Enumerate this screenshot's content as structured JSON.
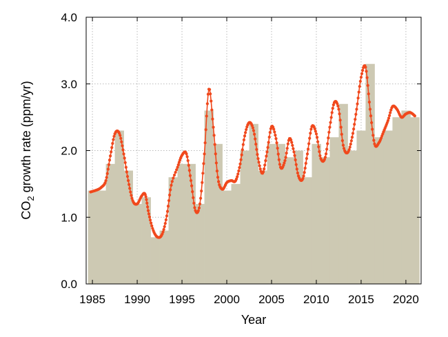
{
  "chart_data": {
    "type": "bar",
    "title": "",
    "xlabel": "Year",
    "ylabel": "CO₂ growth rate (ppm/yr)",
    "xlim": [
      1984.3,
      2021.7
    ],
    "ylim": [
      0.0,
      4.0
    ],
    "x_ticks": [
      1985,
      1990,
      1995,
      2000,
      2005,
      2010,
      2015,
      2020
    ],
    "x_tick_labels": [
      "1985",
      "1990",
      "1995",
      "2000",
      "2005",
      "2010",
      "2015",
      "2020"
    ],
    "y_ticks": [
      0.0,
      1.0,
      2.0,
      3.0,
      4.0
    ],
    "y_tick_labels": [
      "0.0",
      "1.0",
      "2.0",
      "3.0",
      "4.0"
    ],
    "grid": true,
    "legend": "none",
    "series": [
      {
        "type": "bar",
        "color": "#cdc9b3",
        "categories": [
          1985,
          1986,
          1987,
          1988,
          1989,
          1990,
          1991,
          1992,
          1993,
          1994,
          1995,
          1996,
          1997,
          1998,
          1999,
          2000,
          2001,
          2002,
          2003,
          2004,
          2005,
          2006,
          2007,
          2008,
          2009,
          2010,
          2011,
          2012,
          2013,
          2014,
          2015,
          2016,
          2017,
          2018,
          2019,
          2020,
          2021
        ],
        "values": [
          1.4,
          1.4,
          1.8,
          2.3,
          1.7,
          1.2,
          1.3,
          0.7,
          0.8,
          1.6,
          1.8,
          1.8,
          1.2,
          2.6,
          2.1,
          1.4,
          1.5,
          2.0,
          2.4,
          1.7,
          2.1,
          2.1,
          1.9,
          2.0,
          1.6,
          2.1,
          1.9,
          2.2,
          2.7,
          2.0,
          2.3,
          3.3,
          2.2,
          2.3,
          2.5,
          2.6,
          2.5
        ]
      },
      {
        "type": "line",
        "color": "#f0481c",
        "x": [
          1984.8,
          1985.5,
          1986.0,
          1986.5,
          1987.0,
          1987.5,
          1988.0,
          1988.5,
          1989.0,
          1989.5,
          1990.0,
          1990.5,
          1990.9,
          1991.3,
          1991.8,
          1992.3,
          1992.8,
          1993.3,
          1993.8,
          1994.5,
          1995.0,
          1995.5,
          1996.0,
          1996.5,
          1997.0,
          1997.5,
          1998.0,
          1998.5,
          1999.0,
          1999.5,
          2000.0,
          2000.5,
          2001.0,
          2001.5,
          2002.0,
          2002.5,
          2003.0,
          2003.5,
          2004.0,
          2004.5,
          2005.0,
          2005.5,
          2006.0,
          2006.5,
          2007.0,
          2007.5,
          2008.0,
          2008.5,
          2009.0,
          2009.5,
          2010.0,
          2010.5,
          2011.0,
          2011.5,
          2012.0,
          2012.5,
          2013.0,
          2013.5,
          2014.0,
          2014.5,
          2015.0,
          2015.5,
          2016.0,
          2016.5,
          2017.0,
          2017.5,
          2018.0,
          2018.5,
          2019.0,
          2019.5,
          2020.0,
          2020.5,
          2021.0
        ],
        "y": [
          1.38,
          1.41,
          1.45,
          1.55,
          1.92,
          2.25,
          2.26,
          1.95,
          1.55,
          1.25,
          1.2,
          1.32,
          1.34,
          1.05,
          0.8,
          0.7,
          0.75,
          1.02,
          1.48,
          1.75,
          1.93,
          1.95,
          1.55,
          1.1,
          1.2,
          1.95,
          2.92,
          2.35,
          1.6,
          1.42,
          1.52,
          1.55,
          1.55,
          1.8,
          2.22,
          2.42,
          2.3,
          1.88,
          1.66,
          1.98,
          2.36,
          2.18,
          1.75,
          1.85,
          2.18,
          1.98,
          1.62,
          1.58,
          1.95,
          2.36,
          2.25,
          1.88,
          1.9,
          2.35,
          2.72,
          2.62,
          2.08,
          1.97,
          2.2,
          2.62,
          3.1,
          3.25,
          2.62,
          2.1,
          2.12,
          2.28,
          2.45,
          2.66,
          2.62,
          2.5,
          2.55,
          2.57,
          2.52
        ]
      }
    ]
  }
}
